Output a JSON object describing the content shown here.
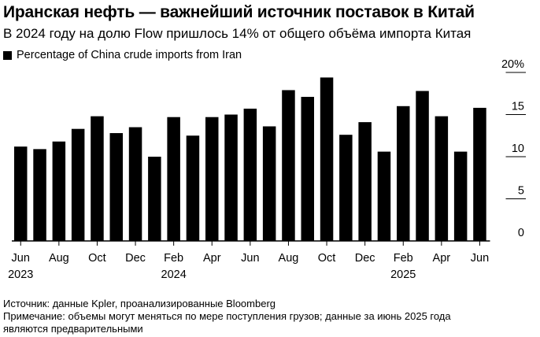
{
  "title": "Иранская нефть — важнейший источник поставок в Китай",
  "subtitle": "В 2024 году на долю Flow пришлось 14% от общего объёма импорта Китая",
  "legend": {
    "label": "Percentage of China crude imports from Iran",
    "color": "#000000"
  },
  "chart_data": {
    "type": "bar",
    "categories": [
      "Jun 2023",
      "Jul 2023",
      "Aug 2023",
      "Sep 2023",
      "Oct 2023",
      "Nov 2023",
      "Dec 2023",
      "Jan 2024",
      "Feb 2024",
      "Mar 2024",
      "Apr 2024",
      "May 2024",
      "Jun 2024",
      "Jul 2024",
      "Aug 2024",
      "Sep 2024",
      "Oct 2024",
      "Nov 2024",
      "Dec 2024",
      "Jan 2025",
      "Feb 2025",
      "Mar 2025",
      "Apr 2025",
      "May 2025",
      "Jun 2025"
    ],
    "values": [
      11.2,
      10.9,
      11.8,
      13.3,
      14.8,
      12.8,
      13.5,
      10.0,
      14.7,
      12.5,
      14.7,
      15.0,
      15.7,
      13.6,
      17.9,
      17.1,
      19.4,
      12.6,
      14.1,
      10.6,
      16.0,
      17.8,
      14.8,
      10.6,
      15.8
    ],
    "ylim": [
      0,
      20
    ],
    "y_ticks": [
      {
        "value": 0,
        "label": "0"
      },
      {
        "value": 5,
        "label": "5"
      },
      {
        "value": 10,
        "label": "10"
      },
      {
        "value": 15,
        "label": "15"
      },
      {
        "value": 20,
        "label": "20%"
      }
    ],
    "x_ticks": [
      {
        "index": 0,
        "label": "Jun",
        "year": "2023"
      },
      {
        "index": 2,
        "label": "Aug"
      },
      {
        "index": 4,
        "label": "Oct"
      },
      {
        "index": 6,
        "label": "Dec"
      },
      {
        "index": 8,
        "label": "Feb",
        "year": "2024"
      },
      {
        "index": 10,
        "label": "Apr"
      },
      {
        "index": 12,
        "label": "Jun"
      },
      {
        "index": 14,
        "label": "Aug"
      },
      {
        "index": 16,
        "label": "Oct"
      },
      {
        "index": 18,
        "label": "Dec"
      },
      {
        "index": 20,
        "label": "Feb",
        "year": "2025"
      },
      {
        "index": 22,
        "label": "Apr"
      },
      {
        "index": 24,
        "label": "Jun"
      }
    ],
    "bar_color": "#000000",
    "grid": false,
    "ylabel": "",
    "xlabel": ""
  },
  "footer": {
    "source": "Источник: данные Kpler, проанализированные Bloomberg",
    "note_line1": "Примечание: объемы могут меняться по мере поступления грузов; данные за июнь 2025 года",
    "note_line2": "являются предварительными"
  }
}
